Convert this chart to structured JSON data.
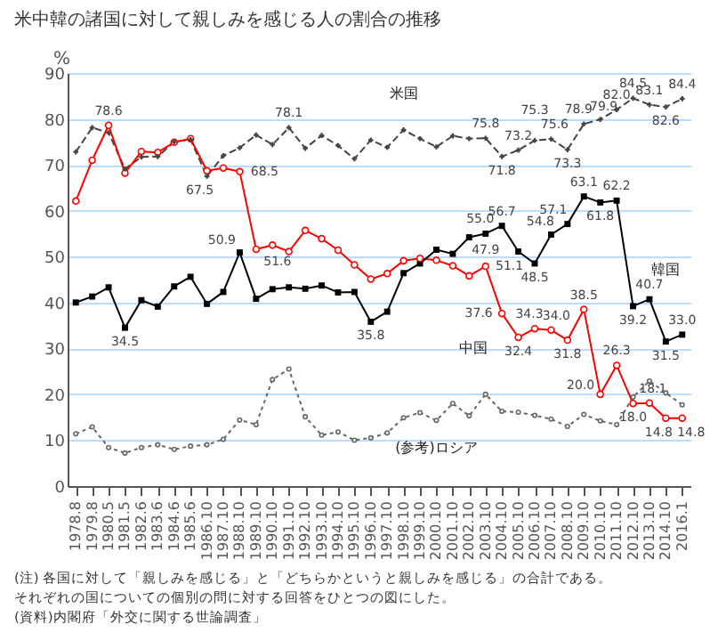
{
  "chart_data": {
    "type": "line",
    "title": "米中韓の諸国に対して親しみを感じる人の割合の推移",
    "ylabel": "%",
    "categories": [
      "1978.8",
      "1979.8",
      "1980.5",
      "1981.5",
      "1982.6",
      "1983.6",
      "1984.6",
      "1985.6",
      "1986.10",
      "1987.10",
      "1988.10",
      "1989.10",
      "1990.10",
      "1991.10",
      "1992.10",
      "1993.10",
      "1994.10",
      "1995.10",
      "1996.10",
      "1997.10",
      "1998.10",
      "1999.10",
      "2000.10",
      "2001.10",
      "2002.10",
      "2003.10",
      "2004.10",
      "2005.10",
      "2006.10",
      "2007.10",
      "2008.10",
      "2009.10",
      "2010.10",
      "2011.10",
      "2012.10",
      "2013.10",
      "2014.10",
      "2016.1"
    ],
    "series": [
      {
        "name": "米国",
        "color": "#444444",
        "marker": "cross",
        "line_style": "dashed",
        "values": [
          72.8,
          78.1,
          77.0,
          69.1,
          71.7,
          71.8,
          75.0,
          75.5,
          67.5,
          72.0,
          73.7,
          76.5,
          74.4,
          78.1,
          73.6,
          76.4,
          74.2,
          71.3,
          75.4,
          73.8,
          77.6,
          75.7,
          73.9,
          76.3,
          75.7,
          75.8,
          71.8,
          73.2,
          75.3,
          75.6,
          73.3,
          78.9,
          79.9,
          82.0,
          84.5,
          83.1,
          82.6,
          84.4
        ],
        "value_labels": [
          null,
          null,
          null,
          null,
          null,
          null,
          null,
          null,
          "67.5",
          null,
          null,
          null,
          null,
          "78.1",
          null,
          null,
          null,
          null,
          null,
          null,
          null,
          null,
          null,
          null,
          null,
          "75.8",
          "71.8",
          "73.2",
          "75.3",
          "75.6",
          "73.3",
          "78.9",
          "79.9",
          "82.0",
          "84.5",
          "83.1",
          "82.6",
          "84.4"
        ]
      },
      {
        "name": "中国",
        "color": "#ff0000",
        "marker": "circle",
        "line_style": "solid",
        "values": [
          62.1,
          71.0,
          78.6,
          68.2,
          72.9,
          72.7,
          74.9,
          75.7,
          68.7,
          69.3,
          68.5,
          51.6,
          52.5,
          51.1,
          55.7,
          53.9,
          51.4,
          48.2,
          45.1,
          46.3,
          49.1,
          49.6,
          49.2,
          48.0,
          45.8,
          47.9,
          37.6,
          32.4,
          34.3,
          34.0,
          31.8,
          38.5,
          20.0,
          26.3,
          18.0,
          18.1,
          14.8,
          14.8
        ],
        "value_labels": [
          null,
          null,
          "78.6",
          null,
          null,
          null,
          null,
          null,
          null,
          null,
          "68.5",
          "51.6",
          null,
          null,
          null,
          null,
          null,
          null,
          null,
          null,
          null,
          null,
          null,
          null,
          null,
          "47.9",
          "37.6",
          "32.4",
          "34.3",
          "34.0",
          "31.8",
          "38.5",
          "20.0",
          "26.3",
          "18.0",
          "18.1",
          "14.8",
          "14.8"
        ]
      },
      {
        "name": "韓国",
        "color": "#000000",
        "marker": "square",
        "line_style": "solid",
        "values": [
          40.0,
          41.3,
          43.3,
          34.5,
          40.5,
          39.1,
          43.5,
          45.6,
          39.7,
          42.3,
          50.9,
          40.8,
          42.9,
          43.3,
          43.0,
          43.7,
          42.2,
          42.3,
          35.8,
          38.0,
          46.4,
          48.5,
          51.5,
          50.6,
          54.2,
          55.0,
          56.7,
          51.1,
          48.5,
          54.8,
          57.1,
          63.1,
          61.8,
          62.2,
          39.2,
          40.7,
          31.5,
          33.0
        ],
        "value_labels": [
          null,
          null,
          null,
          "34.5",
          null,
          null,
          null,
          null,
          null,
          null,
          "50.9",
          null,
          null,
          null,
          null,
          null,
          null,
          null,
          "35.8",
          null,
          null,
          null,
          null,
          null,
          null,
          "55.0",
          "56.7",
          "51.1",
          "48.5",
          "54.8",
          "57.1",
          "63.1",
          "61.8",
          "62.2",
          "39.2",
          "40.7",
          "31.5",
          "33.0"
        ]
      },
      {
        "name": "(参考)ロシア",
        "color": "#666666",
        "marker": "circle",
        "line_style": "dotted",
        "values": [
          11.4,
          12.9,
          8.4,
          7.2,
          8.4,
          9.0,
          8.0,
          8.7,
          9.0,
          10.2,
          14.4,
          13.4,
          23.2,
          25.5,
          15.1,
          11.1,
          11.8,
          10.0,
          10.5,
          11.6,
          14.9,
          16.0,
          14.3,
          18.0,
          15.3,
          20.0,
          16.3,
          16.1,
          15.4,
          14.6,
          13.0,
          15.6,
          14.2,
          13.4,
          19.4,
          22.9,
          20.3,
          17.7
        ]
      }
    ],
    "ylim": [
      0,
      90
    ],
    "yticks": [
      0,
      10,
      20,
      30,
      40,
      50,
      60,
      70,
      80,
      90
    ],
    "grid": "y",
    "annotations": [
      "(注) 各国に対して「親しみを感じる」と「どちらかというと親しみを感じる」の合計である。",
      "　　それぞれの国についての個別の問に対する回答をひとつの図にした。",
      "(資料)内閣府「外交に関する世論調査」"
    ]
  }
}
